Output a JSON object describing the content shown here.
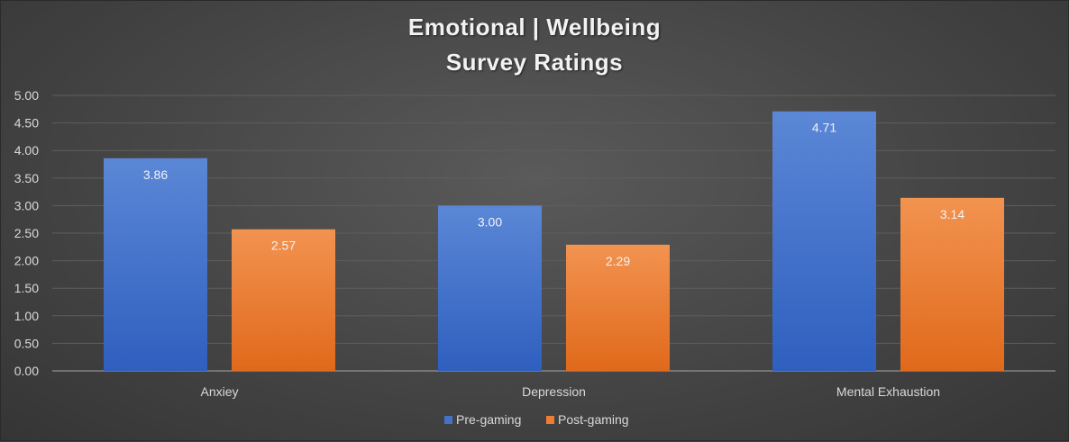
{
  "chart_data": {
    "type": "bar",
    "title_lines": [
      "Emotional | Wellbeing",
      "Survey Ratings"
    ],
    "categories": [
      "Anxiey",
      "Depression",
      "Mental Exhaustion"
    ],
    "series": [
      {
        "name": "Pre-gaming",
        "values": [
          3.86,
          3.0,
          4.71
        ],
        "labels": [
          "3.86",
          "3.00",
          "4.71"
        ],
        "color": "#4472C4"
      },
      {
        "name": "Post-gaming",
        "values": [
          2.57,
          2.29,
          3.14
        ],
        "labels": [
          "2.57",
          "2.29",
          "3.14"
        ],
        "color": "#ED7D31"
      }
    ],
    "yticks": [
      "0.00",
      "0.50",
      "1.00",
      "1.50",
      "2.00",
      "2.50",
      "3.00",
      "3.50",
      "4.00",
      "4.50",
      "5.00"
    ],
    "ylim": [
      0,
      5
    ],
    "grid": true,
    "legend_position": "bottom"
  }
}
